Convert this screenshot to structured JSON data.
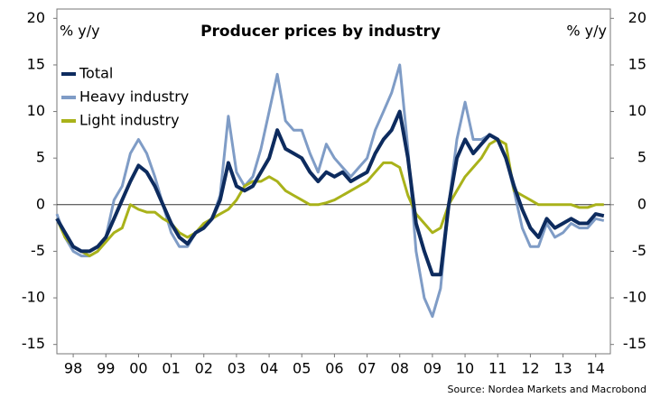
{
  "chart_data": {
    "type": "line",
    "title": "Producer prices by industry",
    "ylabel": "% y/y",
    "y2label": "% y/y",
    "source": "Source: Nordea Markets and Macrobond",
    "x": [
      1998,
      1998.25,
      1998.5,
      1998.75,
      1999,
      1999.25,
      1999.5,
      1999.75,
      2000,
      2000.25,
      2000.5,
      2000.75,
      2001,
      2001.25,
      2001.5,
      2001.75,
      2002,
      2002.25,
      2002.5,
      2002.75,
      2003,
      2003.25,
      2003.5,
      2003.75,
      2004,
      2004.25,
      2004.5,
      2004.75,
      2005,
      2005.25,
      2005.5,
      2005.75,
      2006,
      2006.25,
      2006.5,
      2006.75,
      2007,
      2007.25,
      2007.5,
      2007.75,
      2008,
      2008.25,
      2008.5,
      2008.75,
      2009,
      2009.25,
      2009.5,
      2009.75,
      2010,
      2010.25,
      2010.5,
      2010.75,
      2011,
      2011.25,
      2011.5,
      2011.75,
      2012,
      2012.25,
      2012.5,
      2012.75,
      2013,
      2013.25,
      2013.5,
      2013.75,
      2014,
      2014.25,
      2014.5,
      2014.75
    ],
    "series": [
      {
        "name": "Heavy industry",
        "color": "#7f9cc6",
        "values": [
          -1,
          -3.5,
          -5,
          -5.5,
          -5.5,
          -5,
          -3.5,
          0.5,
          2,
          5.5,
          7,
          5.5,
          3,
          0,
          -3,
          -4.5,
          -4.5,
          -3,
          -2.5,
          -1.5,
          1,
          9.5,
          3.5,
          2,
          3,
          6,
          10,
          14,
          9,
          8,
          8,
          5.5,
          3.5,
          6.5,
          5,
          4,
          3,
          4,
          5,
          8,
          10,
          12,
          15,
          6,
          -5,
          -10,
          -12,
          -9,
          0,
          7,
          11,
          7,
          7,
          7.5,
          7,
          5,
          1.5,
          -2.5,
          -4.5,
          -4.5,
          -2,
          -3.5,
          -3,
          -2,
          -2.5,
          -2.5,
          -1.5,
          -1.7
        ]
      },
      {
        "name": "Light industry",
        "color": "#a9b21a",
        "values": [
          -1.5,
          -3.5,
          -4.5,
          -5,
          -5.5,
          -5,
          -4,
          -3,
          -2.5,
          0,
          -0.5,
          -0.8,
          -0.8,
          -1.5,
          -2,
          -3,
          -3.5,
          -3,
          -2,
          -1.5,
          -1,
          -0.5,
          0.5,
          2,
          2.5,
          2.5,
          3,
          2.5,
          1.5,
          1,
          0.5,
          0,
          0,
          0.2,
          0.5,
          1,
          1.5,
          2,
          2.5,
          3.5,
          4.5,
          4.5,
          4,
          1,
          -1,
          -2,
          -3,
          -2.5,
          0,
          1.5,
          3,
          4,
          5,
          6.5,
          7,
          6.5,
          1.5,
          1,
          0.5,
          0,
          0,
          0,
          0,
          0,
          -0.3,
          -0.3,
          0,
          0
        ]
      },
      {
        "name": "Total",
        "color": "#0d2b5e",
        "values": [
          -1.5,
          -3,
          -4.5,
          -5,
          -5,
          -4.5,
          -3.5,
          -1.5,
          0.5,
          2.5,
          4.2,
          3.5,
          2,
          0,
          -2,
          -3.5,
          -4.2,
          -3,
          -2.5,
          -1.5,
          0.5,
          4.5,
          2,
          1.5,
          2,
          3.5,
          5,
          8,
          6,
          5.5,
          5,
          3.5,
          2.5,
          3.5,
          3,
          3.5,
          2.5,
          3,
          3.5,
          5.5,
          7,
          8,
          10,
          5,
          -2,
          -5,
          -7.5,
          -7.5,
          0,
          5,
          7,
          5.5,
          6.5,
          7.5,
          7,
          5,
          2,
          -0.5,
          -2.5,
          -3.5,
          -1.5,
          -2.5,
          -2,
          -1.5,
          -2,
          -2,
          -1,
          -1.2
        ]
      }
    ],
    "legend_order": [
      "Total",
      "Heavy industry",
      "Light industry"
    ],
    "xlim": [
      1998,
      2014.95
    ],
    "xticks": [
      {
        "value": 1998.5,
        "label": "98"
      },
      {
        "value": 1999.5,
        "label": "99"
      },
      {
        "value": 2000.5,
        "label": "00"
      },
      {
        "value": 2001.5,
        "label": "01"
      },
      {
        "value": 2002.5,
        "label": "02"
      },
      {
        "value": 2003.5,
        "label": "03"
      },
      {
        "value": 2004.5,
        "label": "04"
      },
      {
        "value": 2005.5,
        "label": "05"
      },
      {
        "value": 2006.5,
        "label": "06"
      },
      {
        "value": 2007.5,
        "label": "07"
      },
      {
        "value": 2008.5,
        "label": "08"
      },
      {
        "value": 2009.5,
        "label": "09"
      },
      {
        "value": 2010.5,
        "label": "10"
      },
      {
        "value": 2011.5,
        "label": "11"
      },
      {
        "value": 2012.5,
        "label": "12"
      },
      {
        "value": 2013.5,
        "label": "13"
      },
      {
        "value": 2014.5,
        "label": "14"
      }
    ],
    "ylim": [
      -16,
      21
    ],
    "yticks": [
      20,
      15,
      10,
      5,
      0,
      -5,
      -10,
      -15
    ],
    "y2lim": [
      -16,
      21
    ],
    "y2ticks": [
      20,
      15,
      10,
      5,
      0,
      -5,
      -10,
      -15
    ],
    "legend": "top-left",
    "grid": false
  }
}
